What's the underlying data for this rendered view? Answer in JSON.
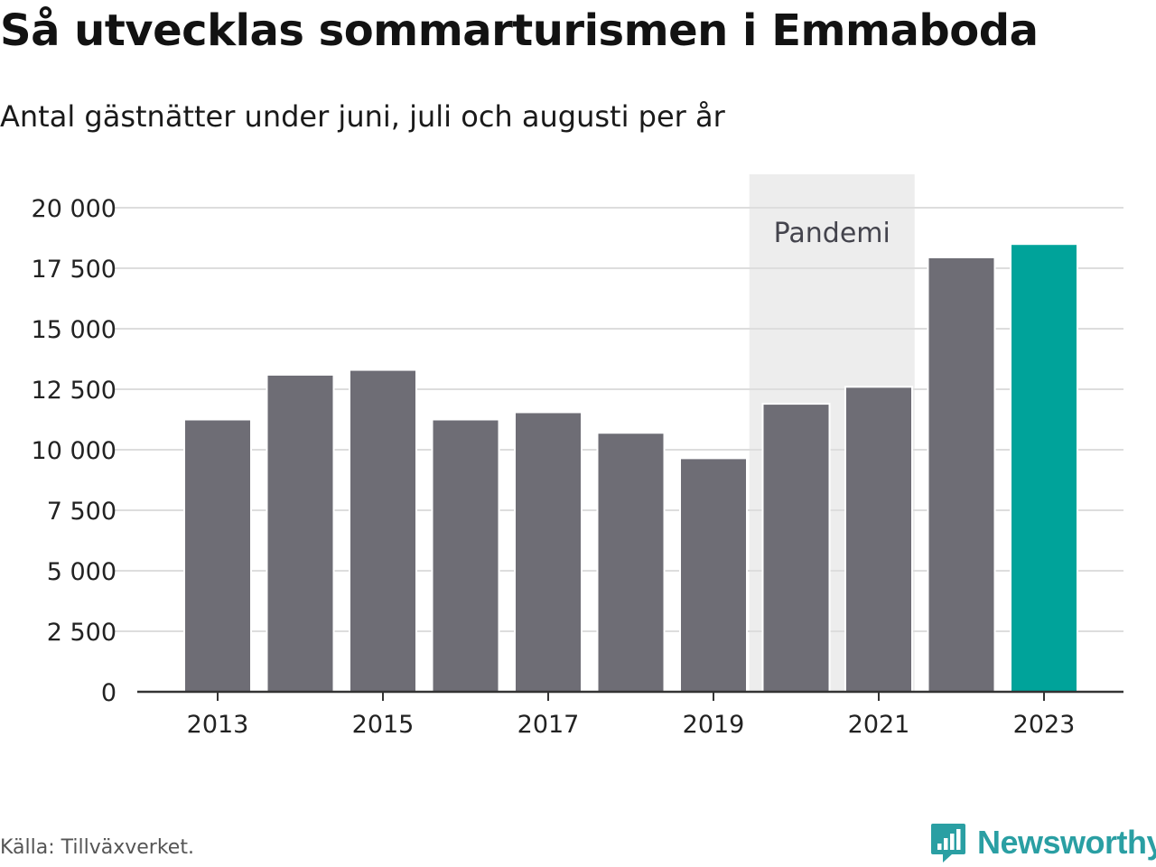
{
  "header": {
    "title": "Så utvecklas sommarturismen i Emmaboda",
    "subtitle": "Antal gästnätter under juni, juli och augusti per år"
  },
  "footer": {
    "source": "Källa: Tillväxverket.",
    "brand": "Newsworthy",
    "brand_icon": "bar-chart-speech-bubble-icon"
  },
  "colors": {
    "bar_default": "#6e6d75",
    "bar_highlight": "#00a39a",
    "pandemic_band": "#ededed",
    "grid": "#dddddd",
    "axis": "#333333",
    "brand": "#2a9fa3"
  },
  "chart_data": {
    "type": "bar",
    "title": "Så utvecklas sommarturismen i Emmaboda",
    "subtitle": "Antal gästnätter under juni, juli och augusti per år",
    "categories": [
      "2013",
      "2014",
      "2015",
      "2016",
      "2017",
      "2018",
      "2019",
      "2020",
      "2021",
      "2022",
      "2023"
    ],
    "values": [
      11250,
      13100,
      13300,
      11250,
      11550,
      10700,
      9650,
      11900,
      12600,
      17950,
      18500
    ],
    "highlight_category": "2023",
    "ylim": [
      0,
      20000
    ],
    "yticks": [
      0,
      2500,
      5000,
      7500,
      10000,
      12500,
      15000,
      17500,
      20000
    ],
    "ytick_labels": [
      "0",
      "2 500",
      "5 000",
      "7 500",
      "10 000",
      "12 500",
      "15 000",
      "17 500",
      "20 000"
    ],
    "xtick_labels": [
      "2013",
      "2015",
      "2017",
      "2019",
      "2021",
      "2023"
    ],
    "grid": true,
    "annotations": [
      {
        "label": "Pandemi",
        "from": "2020",
        "to": "2021"
      }
    ]
  }
}
